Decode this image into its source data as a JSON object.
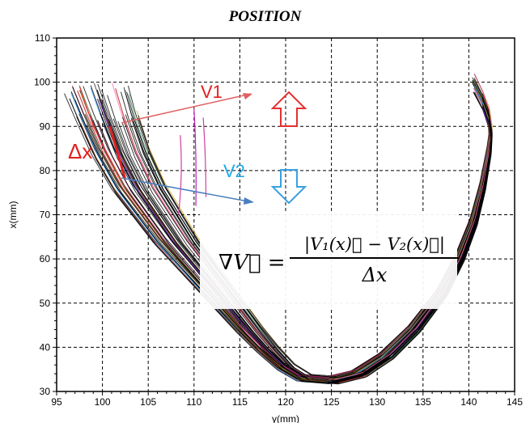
{
  "chart_data": {
    "type": "line",
    "title": "POSITION",
    "xlabel": "y(mm)",
    "ylabel": "x(mm)",
    "xlim": [
      95,
      145
    ],
    "ylim": [
      30,
      110
    ],
    "xticks": [
      "95",
      "100",
      "105",
      "110",
      "115",
      "120",
      "125",
      "130",
      "135",
      "140",
      "145"
    ],
    "yticks": [
      "30",
      "40",
      "50",
      "60",
      "70",
      "80",
      "90",
      "100",
      "110"
    ],
    "grid": true,
    "base_curve": {
      "x": [
        99.5,
        100.5,
        102,
        104,
        106,
        108,
        110,
        112,
        114,
        116,
        118,
        120,
        122,
        125,
        128,
        131,
        134,
        137,
        139,
        140.5,
        141.5,
        142.2,
        142.4,
        142.2,
        141.5,
        140.5
      ],
      "y": [
        98,
        92,
        84,
        76,
        70,
        64,
        59,
        54,
        49,
        44,
        39.5,
        35.5,
        33,
        32.5,
        34,
        38,
        44,
        52,
        60,
        68,
        76,
        84,
        88,
        92,
        96,
        100
      ]
    },
    "annotations": {
      "v1": "V1",
      "v2": "V2",
      "delta_x": "Δx",
      "formula_lhs": "∇V⃗ =",
      "formula_numerator": "|V₁(x)⃗ − V₂(x)⃗|",
      "formula_denominator": "Δx"
    },
    "colors": {
      "trace_main": "#000000",
      "v1_arrow": "#e06060",
      "v2_arrow": "#4a7fc0",
      "up_arrow": "#e53030",
      "down_arrow": "#3aa0e0",
      "delta_label": "#e02020",
      "v1_label": "#e02020",
      "v2_label": "#20a8e8"
    }
  }
}
